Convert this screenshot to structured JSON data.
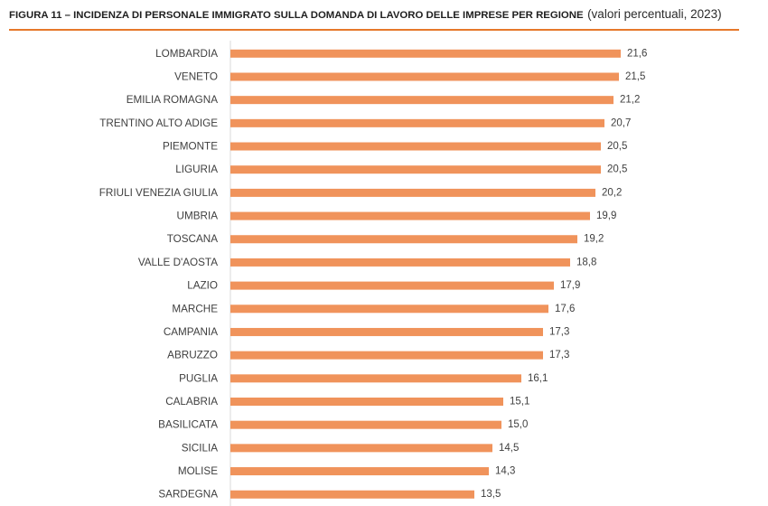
{
  "header": {
    "rule_color": "#E6782B"
  },
  "chart_data": {
    "type": "bar",
    "orientation": "horizontal",
    "title": "FIGURA 11 – INCIDENZA DI PERSONALE IMMIGRATO SULLA DOMANDA DI LAVORO DELLE IMPRESE PER REGIONE",
    "subtitle": "(valori percentuali, 2023)",
    "categories": [
      "LOMBARDIA",
      "VENETO",
      "EMILIA ROMAGNA",
      "TRENTINO ALTO ADIGE",
      "PIEMONTE",
      "LIGURIA",
      "FRIULI VENEZIA GIULIA",
      "UMBRIA",
      "TOSCANA",
      "VALLE D'AOSTA",
      "LAZIO",
      "MARCHE",
      "CAMPANIA",
      "ABRUZZO",
      "PUGLIA",
      "CALABRIA",
      "BASILICATA",
      "SICILIA",
      "MOLISE",
      "SARDEGNA"
    ],
    "values": [
      21.6,
      21.5,
      21.2,
      20.7,
      20.5,
      20.5,
      20.2,
      19.9,
      19.2,
      18.8,
      17.9,
      17.6,
      17.3,
      17.3,
      16.1,
      15.1,
      15.0,
      14.5,
      14.3,
      13.5
    ],
    "value_labels": [
      "21,6",
      "21,5",
      "21,2",
      "20,7",
      "20,5",
      "20,5",
      "20,2",
      "19,9",
      "19,2",
      "18,8",
      "17,9",
      "17,6",
      "17,3",
      "17,3",
      "16,1",
      "15,1",
      "15,0",
      "14,5",
      "14,3",
      "13,5"
    ],
    "xlim": [
      0,
      25
    ],
    "grid": false,
    "legend": "none",
    "bar_color": "#F0935B",
    "axis_color": "#D9D9D9"
  }
}
